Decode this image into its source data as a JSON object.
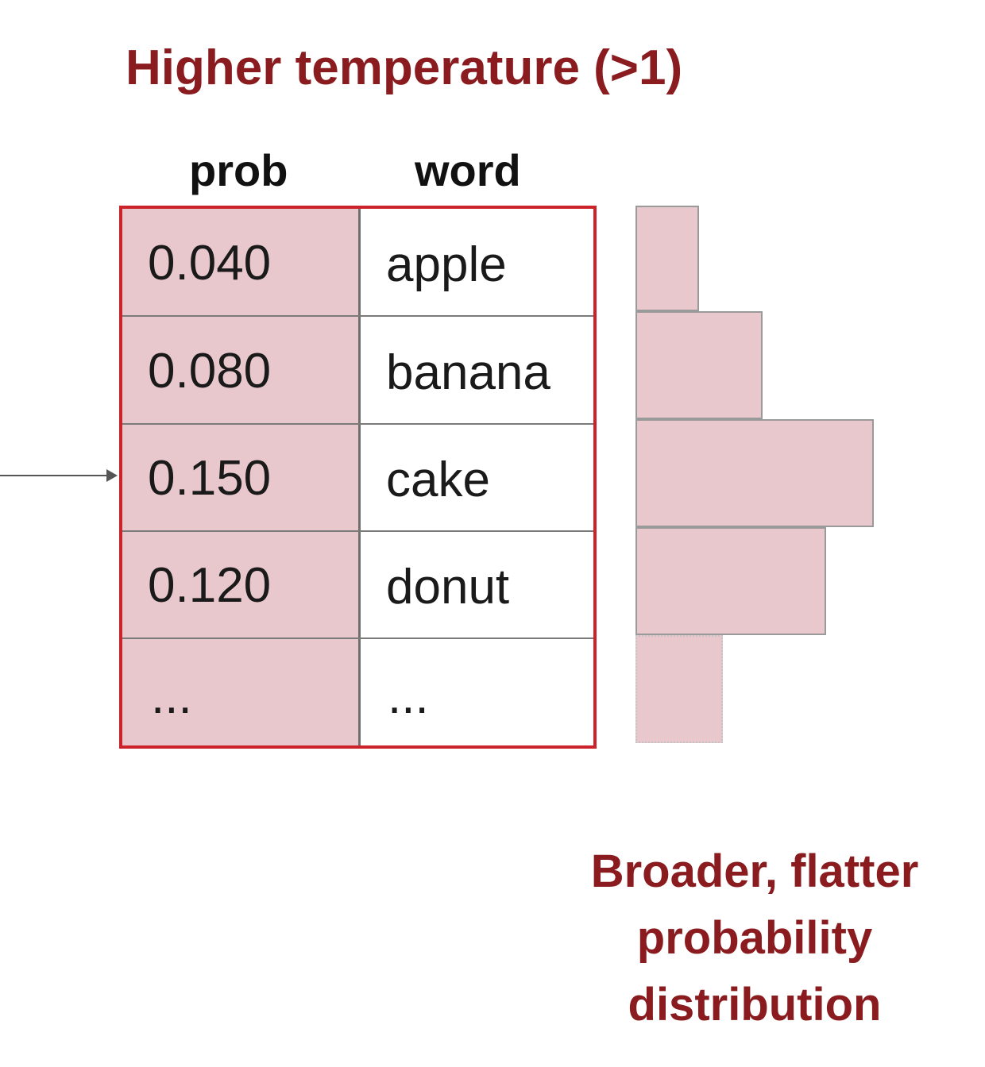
{
  "title": "Higher temperature (>1)",
  "columns": {
    "prob": "prob",
    "word": "word"
  },
  "rows": [
    {
      "prob": "0.040",
      "word": "apple"
    },
    {
      "prob": "0.080",
      "word": "banana"
    },
    {
      "prob": "0.150",
      "word": "cake"
    },
    {
      "prob": "0.120",
      "word": "donut"
    },
    {
      "prob": "...",
      "word": "..."
    }
  ],
  "chart_data": {
    "type": "bar",
    "orientation": "horizontal",
    "categories": [
      "apple",
      "banana",
      "cake",
      "donut",
      "..."
    ],
    "values": [
      0.04,
      0.08,
      0.15,
      0.12,
      null
    ]
  },
  "caption": {
    "line1": "Broader, flatter",
    "line2": "probability",
    "line3": "distribution"
  },
  "colors": {
    "title": "#8a1c1f",
    "table_border": "#cc2229",
    "prob_fill": "#e8c8cc",
    "bar_fill": "#e8c8cc"
  }
}
